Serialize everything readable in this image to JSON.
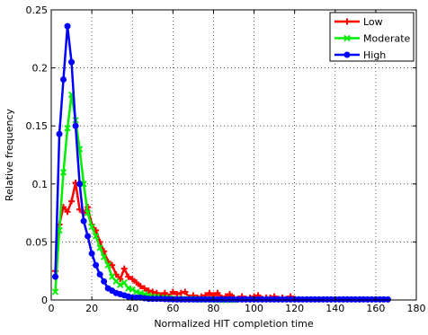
{
  "chart_data": {
    "type": "line",
    "xlabel": "Normalized HIT completion time",
    "ylabel": "Relative frequency",
    "xlim": [
      0,
      180
    ],
    "ylim": [
      0,
      0.25
    ],
    "xticks": [
      0,
      20,
      40,
      60,
      80,
      100,
      120,
      140,
      160,
      180
    ],
    "yticks": [
      0,
      0.05,
      0.1,
      0.15,
      0.2,
      0.25
    ],
    "xtick_labels": [
      "0",
      "20",
      "40",
      "60",
      "80",
      "100",
      "120",
      "140",
      "160",
      "180"
    ],
    "ytick_labels": [
      "0",
      "0.05",
      "0.1",
      "0.15",
      "0.2",
      "0.25"
    ],
    "grid": true,
    "legend_position": "top-right",
    "series": [
      {
        "name": "Low",
        "color": "#ff0000",
        "marker": "plus",
        "x": [
          2,
          4,
          6,
          8,
          10,
          12,
          14,
          16,
          18,
          20,
          22,
          24,
          26,
          28,
          30,
          32,
          34,
          36,
          38,
          40,
          42,
          44,
          46,
          48,
          50,
          52,
          54,
          56,
          58,
          60,
          62,
          64,
          66,
          68,
          70,
          72,
          74,
          76,
          78,
          80,
          82,
          84,
          86,
          88,
          90,
          92,
          94,
          96,
          98,
          100,
          102,
          104,
          106,
          108,
          110,
          112,
          114,
          116,
          118,
          120
        ],
        "y": [
          0.025,
          0.065,
          0.08,
          0.076,
          0.085,
          0.101,
          0.078,
          0.075,
          0.08,
          0.065,
          0.06,
          0.05,
          0.042,
          0.033,
          0.03,
          0.022,
          0.018,
          0.027,
          0.02,
          0.018,
          0.015,
          0.012,
          0.01,
          0.008,
          0.007,
          0.006,
          0.004,
          0.006,
          0.003,
          0.007,
          0.005,
          0.006,
          0.007,
          0.002,
          0.004,
          0.002,
          0.003,
          0.004,
          0.006,
          0.004,
          0.006,
          0.002,
          0.003,
          0.005,
          0.002,
          0.001,
          0.003,
          0.001,
          0.002,
          0.003,
          0.004,
          0.001,
          0.002,
          0.002,
          0.003,
          0.001,
          0.002,
          0.001,
          0.003,
          0.001
        ]
      },
      {
        "name": "Moderate",
        "color": "#00ee00",
        "marker": "x",
        "x": [
          2,
          4,
          6,
          8,
          10,
          12,
          14,
          16,
          18,
          20,
          22,
          24,
          26,
          28,
          30,
          32,
          34,
          36,
          38,
          40,
          42,
          44,
          46,
          48,
          50,
          52,
          54,
          56,
          58,
          60,
          62,
          64,
          66,
          68,
          70,
          72,
          74,
          76,
          78,
          80,
          82,
          84,
          86,
          88,
          90
        ],
        "y": [
          0.007,
          0.06,
          0.11,
          0.148,
          0.177,
          0.155,
          0.13,
          0.1,
          0.075,
          0.063,
          0.055,
          0.045,
          0.037,
          0.03,
          0.02,
          0.016,
          0.013,
          0.015,
          0.01,
          0.009,
          0.007,
          0.006,
          0.005,
          0.004,
          0.003,
          0.003,
          0.002,
          0.002,
          0.002,
          0.001,
          0.001,
          0.001,
          0.001,
          0.001,
          0.001,
          0.0005,
          0.0005,
          0.0005,
          0.0005,
          0.0005,
          0.0,
          0.0,
          0.0,
          0.0,
          0.0
        ]
      },
      {
        "name": "High",
        "color": "#0000ff",
        "marker": "circle",
        "x": [
          2,
          4,
          6,
          8,
          10,
          12,
          14,
          16,
          18,
          20,
          22,
          24,
          26,
          28,
          30,
          32,
          34,
          36,
          38,
          40,
          42,
          44,
          46,
          48,
          50,
          52,
          54,
          56,
          58,
          60,
          62,
          64,
          66,
          68,
          70,
          72,
          74,
          76,
          78,
          80,
          82,
          84,
          86,
          88,
          90,
          92,
          94,
          96,
          98,
          100,
          102,
          104,
          106,
          108,
          110,
          112,
          114,
          116,
          118,
          120,
          122,
          124,
          126,
          128,
          130,
          132,
          134,
          136,
          138,
          140,
          142,
          144,
          146,
          148,
          150,
          152,
          154,
          156,
          158,
          160,
          162,
          164,
          166
        ],
        "y": [
          0.02,
          0.143,
          0.19,
          0.236,
          0.205,
          0.15,
          0.1,
          0.068,
          0.055,
          0.04,
          0.03,
          0.022,
          0.016,
          0.01,
          0.008,
          0.006,
          0.005,
          0.004,
          0.003,
          0.002,
          0.002,
          0.002,
          0.0015,
          0.001,
          0.001,
          0.001,
          0.001,
          0.0008,
          0.0007,
          0.0006,
          0.0005,
          0.0005,
          0.0005,
          0.0005,
          0.0005,
          0.0005,
          0.0005,
          0.0005,
          0.0005,
          0.0005,
          0.0005,
          0.0005,
          0.0005,
          0.0005,
          0.0005,
          0.0005,
          0.0005,
          0.0005,
          0.0005,
          0.0005,
          0.0005,
          0.0005,
          0.0005,
          0.0005,
          0.0005,
          0.0005,
          0.0005,
          0.0005,
          0.0005,
          0.0005,
          0.0005,
          0.0005,
          0.0005,
          0.0005,
          0.0005,
          0.0005,
          0.0005,
          0.0005,
          0.0005,
          0.0005,
          0.0005,
          0.0005,
          0.0005,
          0.0005,
          0.0005,
          0.0005,
          0.0005,
          0.0005,
          0.0005,
          0.0005,
          0.0005,
          0.0005,
          0.0005
        ]
      }
    ]
  }
}
